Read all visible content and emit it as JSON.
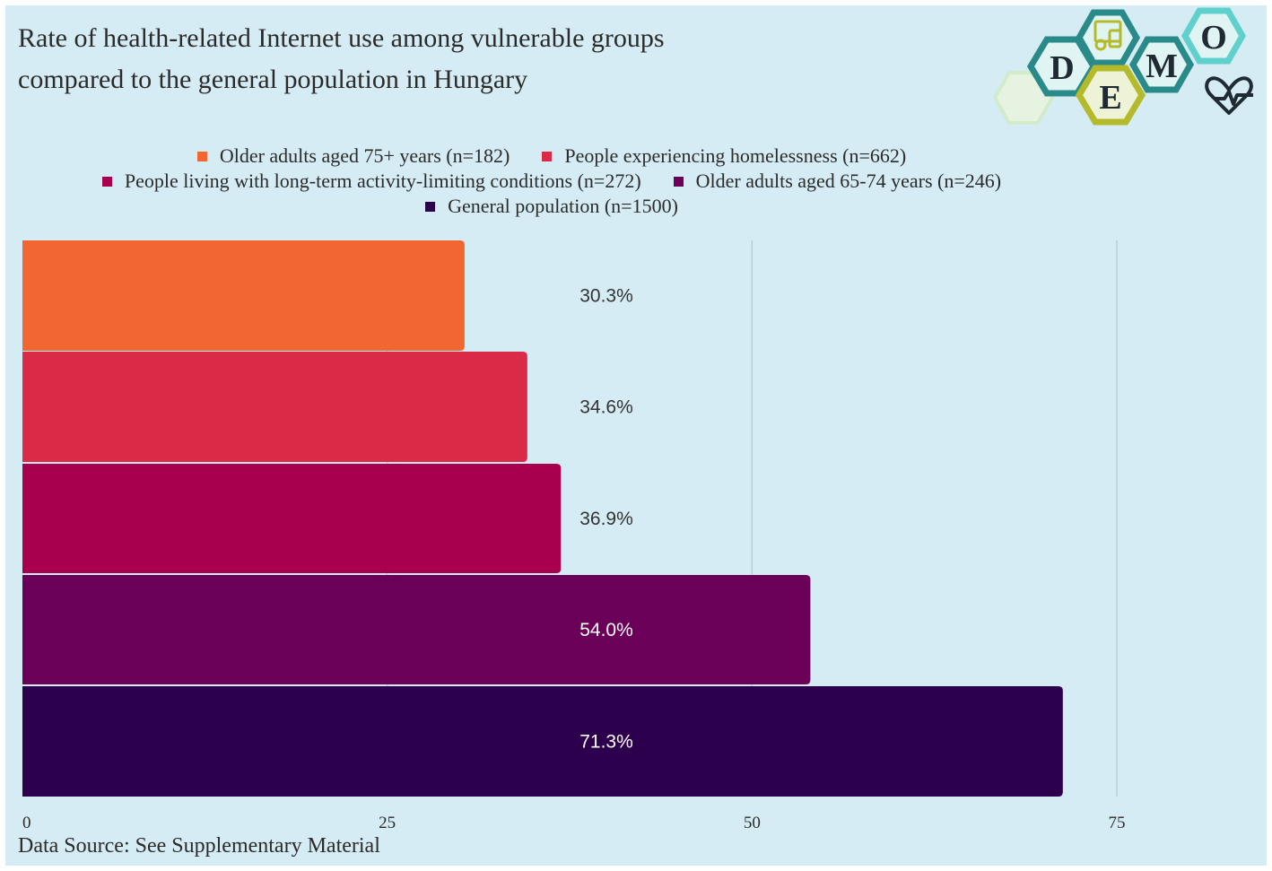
{
  "title": {
    "line1": "Rate of health-related Internet use among vulnerable groups",
    "line2": "compared to the general population in Hungary"
  },
  "logo": {
    "letters": [
      "D",
      "E",
      "M",
      "O"
    ],
    "colors": {
      "teal": "#2a8a8a",
      "olive": "#b5ba2a",
      "light_teal": "#5fd0cc",
      "pale": "#d8ecd6"
    },
    "icons": [
      "devices-icon",
      "heart-pulse-icon"
    ]
  },
  "legend": [
    {
      "label": "Older adults aged 75+ years (n=182)",
      "color": "#f26632"
    },
    {
      "label": "People experiencing homelessness (n=662)",
      "color": "#da2a48"
    },
    {
      "label": "People living with long-term activity-limiting conditions (n=272)",
      "color": "#a8004e"
    },
    {
      "label": "Older adults aged 65-74 years (n=246)",
      "color": "#6b0058"
    },
    {
      "label": "General population (n=1500)",
      "color": "#2d004d"
    }
  ],
  "chart_data": {
    "type": "bar",
    "orientation": "horizontal",
    "title": "Rate of health-related Internet use among vulnerable groups compared to the general population in Hungary",
    "categories": [
      "Older adults aged 75+ years (n=182)",
      "People experiencing homelessness (n=662)",
      "People living with long-term activity-limiting conditions (n=272)",
      "Older adults aged 65-74 years (n=246)",
      "General population (n=1500)"
    ],
    "values": [
      30.3,
      34.6,
      36.9,
      54.0,
      71.3
    ],
    "value_labels": [
      "30.3%",
      "34.6%",
      "36.9%",
      "54.0%",
      "71.3%"
    ],
    "colors": [
      "#f26632",
      "#da2a48",
      "#a8004e",
      "#6b0058",
      "#2d004d"
    ],
    "label_colors": [
      "#333333",
      "#333333",
      "#333333",
      "#ffffff",
      "#ffffff"
    ],
    "x_ticks": [
      0,
      25,
      50,
      75
    ],
    "x_tick_labels": [
      "0",
      "25",
      "50",
      "75"
    ],
    "xlim": [
      0,
      75
    ],
    "grid": true,
    "legend_position": "top"
  },
  "source": "Data Source: See Supplementary Material"
}
